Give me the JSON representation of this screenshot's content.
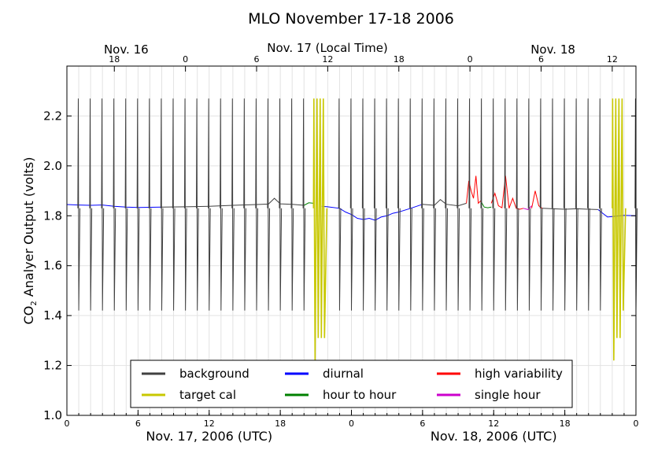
{
  "chart_data": {
    "type": "line",
    "title": "MLO November 17-18 2006",
    "ylabel": {
      "pre": "CO",
      "sub": "2",
      "post": " Analyer Output (volts)"
    },
    "xlim": [
      0,
      48
    ],
    "ylim": [
      1.0,
      2.4
    ],
    "y_ticks": [
      1.0,
      1.2,
      1.4,
      1.6,
      1.8,
      2.0,
      2.2
    ],
    "y_tick_labels": [
      "1.0",
      "1.2",
      "1.4",
      "1.6",
      "1.8",
      "2.0",
      "2.2"
    ],
    "grid": true,
    "bottom_axis": {
      "ticks": [
        0,
        6,
        12,
        18,
        24,
        30,
        36,
        42,
        48
      ],
      "tick_labels": [
        "0",
        "6",
        "12",
        "18",
        "0",
        "6",
        "12",
        "18",
        "0"
      ],
      "day_labels": [
        {
          "text": "Nov. 17, 2006 (UTC)",
          "at": 12
        },
        {
          "text": "Nov. 18, 2006 (UTC)",
          "at": 36
        }
      ]
    },
    "top_axis": {
      "title": "Nov. 17 (Local Time)",
      "ticks": [
        4,
        10,
        16,
        22,
        28,
        34,
        40,
        46
      ],
      "tick_labels": [
        "18",
        "0",
        "6",
        "12",
        "18",
        "0",
        "6",
        "12"
      ],
      "day_labels": [
        {
          "text": "Nov. 16",
          "at": 5
        },
        {
          "text": "Nov. 18",
          "at": 41
        }
      ]
    },
    "legend": {
      "placement": "lower-center",
      "entries": [
        {
          "label": "background",
          "color": "#404040"
        },
        {
          "label": "target cal",
          "color": "#c8c800"
        },
        {
          "label": "diurnal",
          "color": "#0000ff"
        },
        {
          "label": "hour to hour",
          "color": "#008000"
        },
        {
          "label": "high variability",
          "color": "#ff0000"
        },
        {
          "label": "single hour",
          "color": "#cc00cc"
        }
      ]
    },
    "calibration_spikes": {
      "times": [
        1,
        2,
        3,
        4,
        5,
        6,
        7,
        8,
        9,
        10,
        11,
        12,
        13,
        14,
        15,
        16,
        17,
        18,
        19,
        20,
        23,
        24,
        25,
        26,
        27,
        28,
        29,
        30,
        31,
        32,
        33,
        34,
        35,
        36,
        37,
        38,
        39,
        40,
        41,
        42,
        43,
        44,
        45,
        48
      ],
      "high": 2.27,
      "low": 1.42
    },
    "target_cals": [
      {
        "t": 20.8,
        "high": 2.27,
        "lows": [
          1.22,
          1.31,
          1.31,
          1.31
        ]
      },
      {
        "t": 46.0,
        "high": 2.27,
        "lows": [
          1.22,
          1.31,
          1.31,
          1.42
        ]
      }
    ],
    "series": [
      {
        "category": "diurnal",
        "t": [
          0,
          1,
          2,
          3,
          4,
          5,
          6,
          7,
          8
        ],
        "y": [
          1.845,
          1.843,
          1.842,
          1.843,
          1.838,
          1.835,
          1.833,
          1.834,
          1.835
        ]
      },
      {
        "category": "background",
        "t": [
          8,
          10,
          12,
          14,
          16,
          17,
          17.5,
          18,
          19,
          20
        ],
        "y": [
          1.835,
          1.836,
          1.838,
          1.842,
          1.845,
          1.847,
          1.87,
          1.848,
          1.846,
          1.842
        ]
      },
      {
        "category": "hour to hour",
        "t": [
          20,
          20.4,
          20.8
        ],
        "y": [
          1.842,
          1.852,
          1.85
        ]
      },
      {
        "category": "diurnal",
        "t": [
          21.5,
          22,
          23,
          23.5,
          24,
          24.5,
          25,
          25.5,
          26,
          26.5,
          27,
          27.5,
          28,
          29,
          30
        ],
        "y": [
          1.838,
          1.836,
          1.83,
          1.815,
          1.805,
          1.79,
          1.785,
          1.79,
          1.782,
          1.795,
          1.8,
          1.81,
          1.815,
          1.83,
          1.846
        ]
      },
      {
        "category": "background",
        "t": [
          30,
          31,
          31.5,
          32,
          33,
          33.7
        ],
        "y": [
          1.846,
          1.842,
          1.865,
          1.846,
          1.84,
          1.85
        ]
      },
      {
        "category": "high variability",
        "t": [
          33.7,
          33.9,
          34.1,
          34.3,
          34.5,
          34.7,
          34.9
        ],
        "y": [
          1.85,
          1.94,
          1.9,
          1.87,
          1.96,
          1.85,
          1.86
        ]
      },
      {
        "category": "hour to hour",
        "t": [
          34.9,
          35.2,
          35.5,
          35.8
        ],
        "y": [
          1.86,
          1.835,
          1.832,
          1.835
        ]
      },
      {
        "category": "high variability",
        "t": [
          35.8,
          36.1,
          36.4,
          36.7,
          37,
          37.3,
          37.6,
          37.9,
          38.2,
          38.5
        ],
        "y": [
          1.85,
          1.89,
          1.84,
          1.832,
          1.96,
          1.83,
          1.87,
          1.83,
          1.826,
          1.83
        ]
      },
      {
        "category": "single hour",
        "t": [
          38.5,
          38.9,
          39.2
        ],
        "y": [
          1.83,
          1.825,
          1.84
        ]
      },
      {
        "category": "high variability",
        "t": [
          39.2,
          39.5,
          39.8,
          40.1
        ],
        "y": [
          1.83,
          1.9,
          1.84,
          1.83
        ]
      },
      {
        "category": "background",
        "t": [
          40.1,
          41,
          42,
          43,
          44,
          44.8
        ],
        "y": [
          1.83,
          1.828,
          1.826,
          1.828,
          1.826,
          1.825
        ]
      },
      {
        "category": "diurnal",
        "t": [
          44.8,
          45.2,
          45.6,
          47,
          48
        ],
        "y": [
          1.825,
          1.81,
          1.795,
          1.802,
          1.8
        ]
      }
    ]
  }
}
